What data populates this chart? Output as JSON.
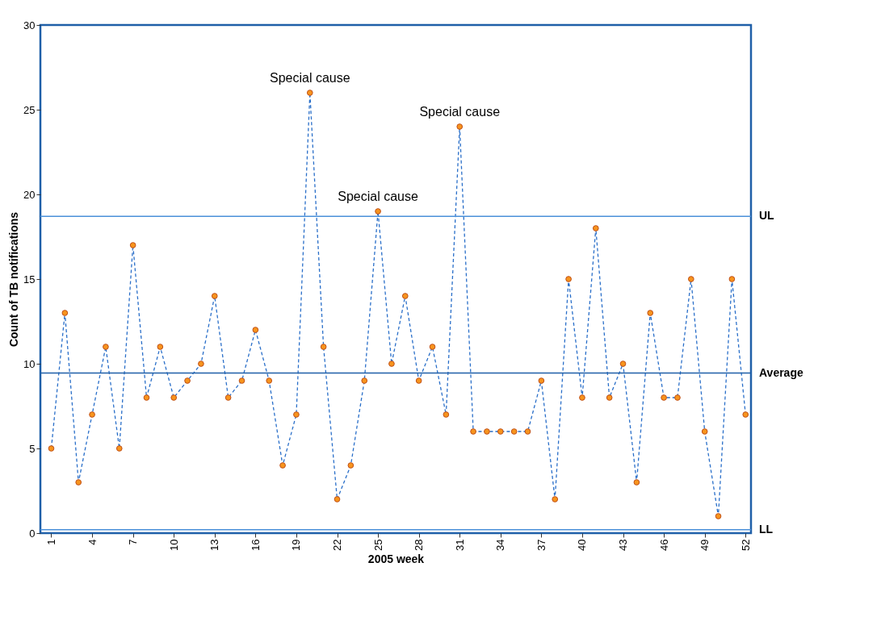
{
  "chart_data": {
    "type": "line",
    "xlabel": "2005 week",
    "ylabel": "Count of TB notifications",
    "x": [
      1,
      2,
      3,
      4,
      5,
      6,
      7,
      8,
      9,
      10,
      11,
      12,
      13,
      14,
      15,
      16,
      17,
      18,
      19,
      20,
      21,
      22,
      23,
      24,
      25,
      26,
      27,
      28,
      29,
      30,
      31,
      32,
      33,
      34,
      35,
      36,
      37,
      38,
      39,
      40,
      41,
      42,
      43,
      44,
      45,
      46,
      47,
      48,
      49,
      50,
      51,
      52
    ],
    "series": [
      {
        "color": "#2a6fc9",
        "values": [
          5,
          13,
          3,
          7,
          11,
          5,
          17,
          8,
          11,
          8,
          9,
          10,
          14,
          8,
          9,
          12,
          9,
          4,
          7,
          26,
          11,
          2,
          4,
          9,
          19,
          10,
          14,
          9,
          11,
          7,
          24,
          6,
          6,
          6,
          6,
          6,
          9,
          2,
          15,
          8,
          18,
          8,
          10,
          3,
          13,
          8,
          8,
          15,
          6,
          1,
          15,
          7
        ]
      }
    ],
    "marker": "circle",
    "line_style": "dashed",
    "grid": false,
    "xlim": [
      0.2,
      52.4
    ],
    "xticks": [
      1,
      4,
      7,
      10,
      13,
      16,
      19,
      22,
      25,
      28,
      31,
      34,
      37,
      40,
      43,
      46,
      49,
      52
    ],
    "ylim": [
      0,
      30
    ],
    "yticks": [
      0,
      5,
      10,
      15,
      20,
      25,
      30
    ],
    "ref_lines": [
      {
        "axis": "y",
        "value": 18.7,
        "label": "UL",
        "color": "#4a90d9"
      },
      {
        "axis": "y",
        "value": 9.45,
        "label": "Average",
        "color": "#1f5fa8"
      },
      {
        "axis": "y",
        "value": 0.2,
        "label": "LL",
        "color": "#4a90d9"
      }
    ],
    "annotations": [
      {
        "text": "Special cause",
        "x": 20,
        "y": 26
      },
      {
        "text": "Special cause",
        "x": 25,
        "y": 19
      },
      {
        "text": "Special cause",
        "x": 31,
        "y": 24
      }
    ]
  }
}
